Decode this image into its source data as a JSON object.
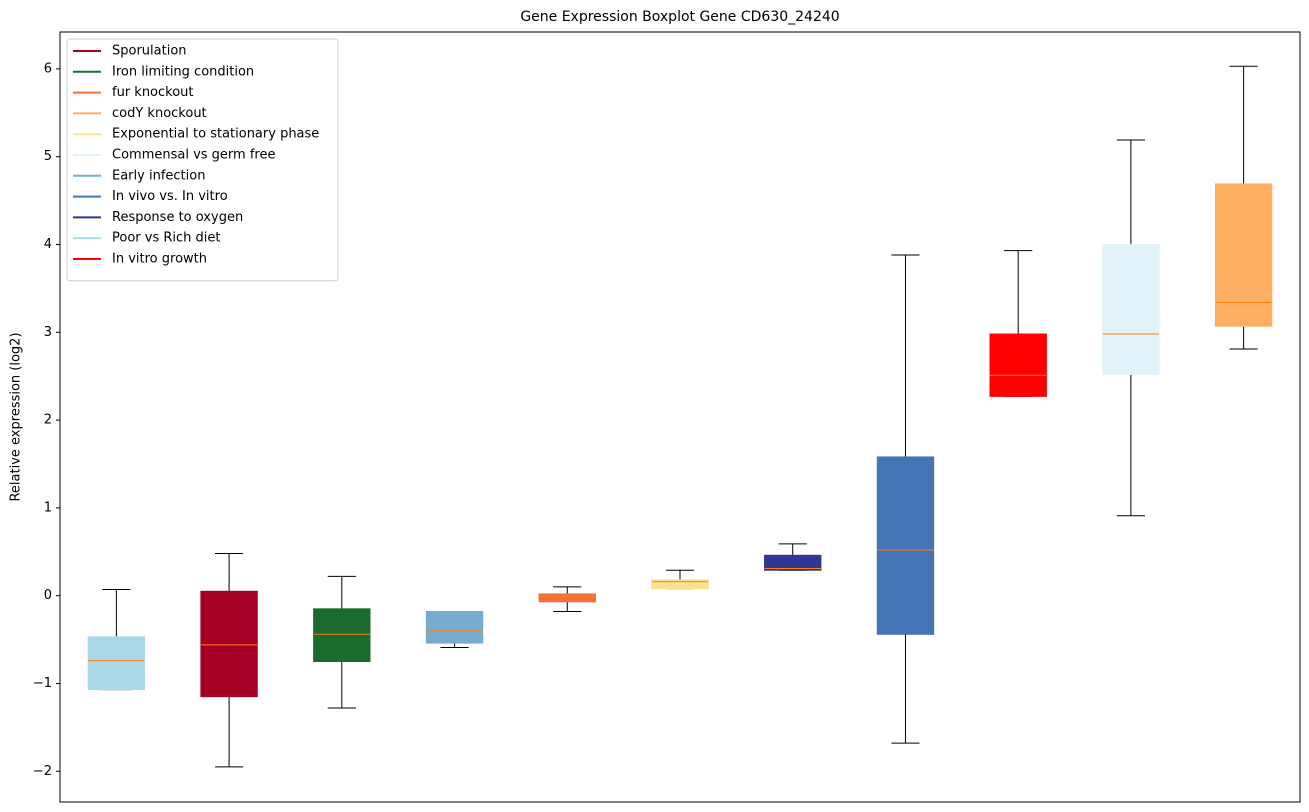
{
  "chart_data": {
    "type": "box",
    "title": "Gene Expression Boxplot Gene CD630_24240",
    "ylabel": "Relative expression (log2)",
    "ylim": [
      -2.35,
      6.42
    ],
    "xlim": [
      0.5,
      11.5
    ],
    "yticks": [
      {
        "value": -2,
        "label": "−2"
      },
      {
        "value": -1,
        "label": "−1"
      },
      0,
      1,
      2,
      3,
      4,
      5,
      6
    ],
    "legend": "upper left",
    "median_color": "#ff7f0e",
    "series": [
      {
        "name": "Sporulation",
        "color": "#a50026",
        "x": 2,
        "low": -1.95,
        "q1": -1.15,
        "median": -0.56,
        "q3": 0.05,
        "high": 0.48
      },
      {
        "name": "Iron limiting condition",
        "color": "#1a6b2e",
        "x": 3,
        "low": -1.28,
        "q1": -0.75,
        "median": -0.44,
        "q3": -0.15,
        "high": 0.22
      },
      {
        "name": "fur knockout",
        "color": "#f46d43",
        "x": 5,
        "low": -0.18,
        "q1": -0.07,
        "median": -0.01,
        "q3": 0.02,
        "high": 0.1
      },
      {
        "name": "codY knockout",
        "color": "#fdae61",
        "x": 11,
        "low": 2.81,
        "q1": 3.07,
        "median": 3.34,
        "q3": 4.69,
        "high": 6.03
      },
      {
        "name": "Exponential to stationary phase",
        "color": "#fee090",
        "x": 6,
        "low": 0.08,
        "q1": 0.08,
        "median": 0.16,
        "q3": 0.18,
        "high": 0.29
      },
      {
        "name": "Commensal vs germ free",
        "color": "#e0f3f8",
        "x": 10,
        "low": 0.91,
        "q1": 2.52,
        "median": 2.98,
        "q3": 4.0,
        "high": 5.19
      },
      {
        "name": "Early infection",
        "color": "#74add1",
        "x": 4,
        "low": -0.59,
        "q1": -0.54,
        "median": -0.4,
        "q3": -0.18,
        "high": -0.18
      },
      {
        "name": "In vivo vs. In vitro",
        "color": "#4575b4",
        "x": 8,
        "low": -1.68,
        "q1": -0.44,
        "median": 0.52,
        "q3": 1.58,
        "high": 3.88
      },
      {
        "name": "Response to oxygen",
        "color": "#313695",
        "x": 7,
        "low": 0.29,
        "q1": 0.29,
        "median": 0.31,
        "q3": 0.46,
        "high": 0.59
      },
      {
        "name": "Poor vs Rich diet",
        "color": "#abd9e9",
        "x": 1,
        "low": -1.07,
        "q1": -1.07,
        "median": -0.74,
        "q3": -0.47,
        "high": 0.07
      },
      {
        "name": "In vitro growth",
        "color": "#ff0000",
        "x": 9,
        "low": 2.27,
        "q1": 2.27,
        "median": 2.51,
        "q3": 2.98,
        "high": 3.93
      }
    ]
  }
}
